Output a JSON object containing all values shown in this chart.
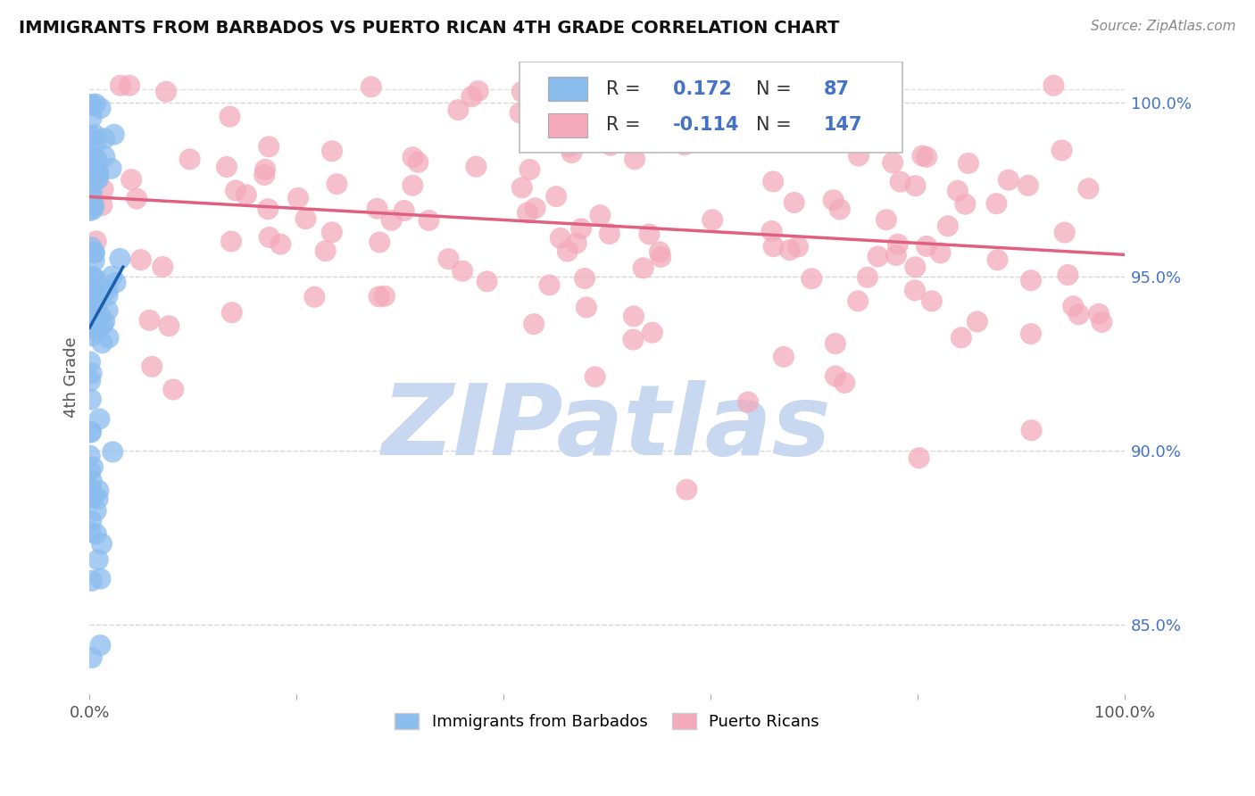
{
  "title": "IMMIGRANTS FROM BARBADOS VS PUERTO RICAN 4TH GRADE CORRELATION CHART",
  "source": "Source: ZipAtlas.com",
  "ylabel": "4th Grade",
  "xlim": [
    0.0,
    1.0
  ],
  "ylim": [
    0.83,
    1.012
  ],
  "x_ticks": [
    0.0,
    0.2,
    0.4,
    0.6,
    0.8,
    1.0
  ],
  "x_tick_labels": [
    "0.0%",
    "",
    "",
    "",
    "",
    "100.0%"
  ],
  "y_ticks_right": [
    0.85,
    0.9,
    0.95,
    1.0
  ],
  "y_tick_labels_right": [
    "85.0%",
    "90.0%",
    "95.0%",
    "100.0%"
  ],
  "legend_R1": "0.172",
  "legend_N1": "87",
  "legend_R2": "-0.114",
  "legend_N2": "147",
  "blue_color": "#8BBCEE",
  "pink_color": "#F4AABB",
  "blue_line_color": "#1A5FAB",
  "pink_line_color": "#E06080",
  "watermark": "ZIPatlas",
  "watermark_color": "#C8D8F0",
  "background_color": "#FFFFFF",
  "legend_label1": "Immigrants from Barbados",
  "legend_label2": "Puerto Ricans",
  "grid_color": "#CCCCCC",
  "title_color": "#111111",
  "source_color": "#888888",
  "ylabel_color": "#555555",
  "tick_color": "#555555",
  "right_tick_color": "#4472C4",
  "legend_text_color": "#333333",
  "legend_value_color": "#4472C4"
}
